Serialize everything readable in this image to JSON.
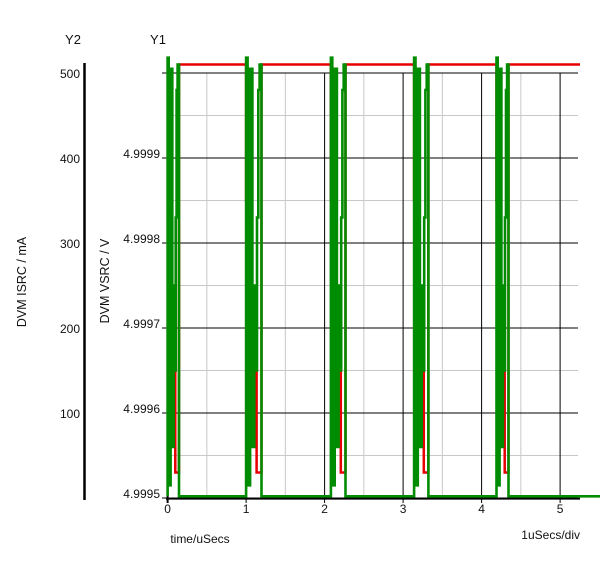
{
  "chart_data": {
    "type": "line",
    "title": "",
    "grid": {
      "major_color": "#000000",
      "minor_color": "#c8c8c8",
      "background": "#ffffff"
    },
    "x_axis": {
      "label": "time/uSecs",
      "scale_label": "1uSecs/div",
      "tick_values": [
        0,
        1,
        2,
        3,
        4,
        5
      ],
      "tick_labels": [
        "0",
        "1",
        "2",
        "3",
        "4",
        "5"
      ],
      "minor_step": 0.5,
      "range": [
        0,
        5.25
      ]
    },
    "y_axes": [
      {
        "id": "Y1",
        "label": "DVM VSRC / V",
        "unit": "V",
        "tick_values": [
          4.9995,
          4.9996,
          4.9997,
          4.9998,
          4.9999
        ],
        "tick_labels": [
          "4.9995",
          "4.9996",
          "4.9997",
          "4.9998",
          "4.9999"
        ],
        "top_gridline_value": 5.0,
        "range": [
          4.9995,
          5.00005
        ]
      },
      {
        "id": "Y2",
        "label": "DVM ISRC / mA",
        "unit": "mA",
        "tick_values": [
          100,
          200,
          300,
          400,
          500
        ],
        "tick_labels": [
          "100",
          "200",
          "300",
          "400",
          "500"
        ],
        "range": [
          0,
          517
        ]
      }
    ],
    "transients": {
      "start_times_usecs": [
        0,
        1.0,
        2.08,
        3.14,
        4.19
      ],
      "widths_usecs": [
        0.145,
        0.196,
        0.186,
        0.182,
        0.153
      ]
    },
    "series": [
      {
        "name": "DVM VSRC",
        "axis": "Y1",
        "color": "#e60000",
        "steady_level_V": 5.00001,
        "dip_min_V": 4.99953,
        "ring_shape": [
          [
            0,
            5.00001
          ],
          [
            0,
            4.99985
          ],
          [
            0.15,
            4.99985
          ],
          [
            0.15,
            4.99976
          ],
          [
            0.24,
            4.99976
          ],
          [
            0.24,
            4.9998
          ],
          [
            0.32,
            4.9998
          ],
          [
            0.32,
            4.99968
          ],
          [
            0.41,
            4.99968
          ],
          [
            0.41,
            4.99973
          ],
          [
            0.5,
            4.99973
          ],
          [
            0.5,
            4.9996
          ],
          [
            0.59,
            4.9996
          ],
          [
            0.59,
            4.99965
          ],
          [
            0.68,
            4.99965
          ],
          [
            0.68,
            4.99953
          ],
          [
            1.0,
            4.99953
          ],
          [
            1.0,
            5.00001
          ]
        ]
      },
      {
        "name": "DVM ISRC",
        "axis": "Y2",
        "color": "#008c00",
        "idle_level_mA": 2,
        "peak_level_mA": 518,
        "ring_shape": [
          [
            0,
            2
          ],
          [
            0,
            518
          ],
          [
            0.1,
            518
          ],
          [
            0.1,
            15
          ],
          [
            0.26,
            15
          ],
          [
            0.26,
            505
          ],
          [
            0.41,
            505
          ],
          [
            0.41,
            60
          ],
          [
            0.53,
            60
          ],
          [
            0.53,
            250
          ],
          [
            0.62,
            250
          ],
          [
            0.62,
            150
          ],
          [
            0.71,
            150
          ],
          [
            0.71,
            330
          ],
          [
            0.79,
            330
          ],
          [
            0.79,
            480
          ],
          [
            0.88,
            480
          ],
          [
            0.88,
            510
          ],
          [
            1.0,
            510
          ],
          [
            1.0,
            2
          ]
        ]
      }
    ]
  }
}
